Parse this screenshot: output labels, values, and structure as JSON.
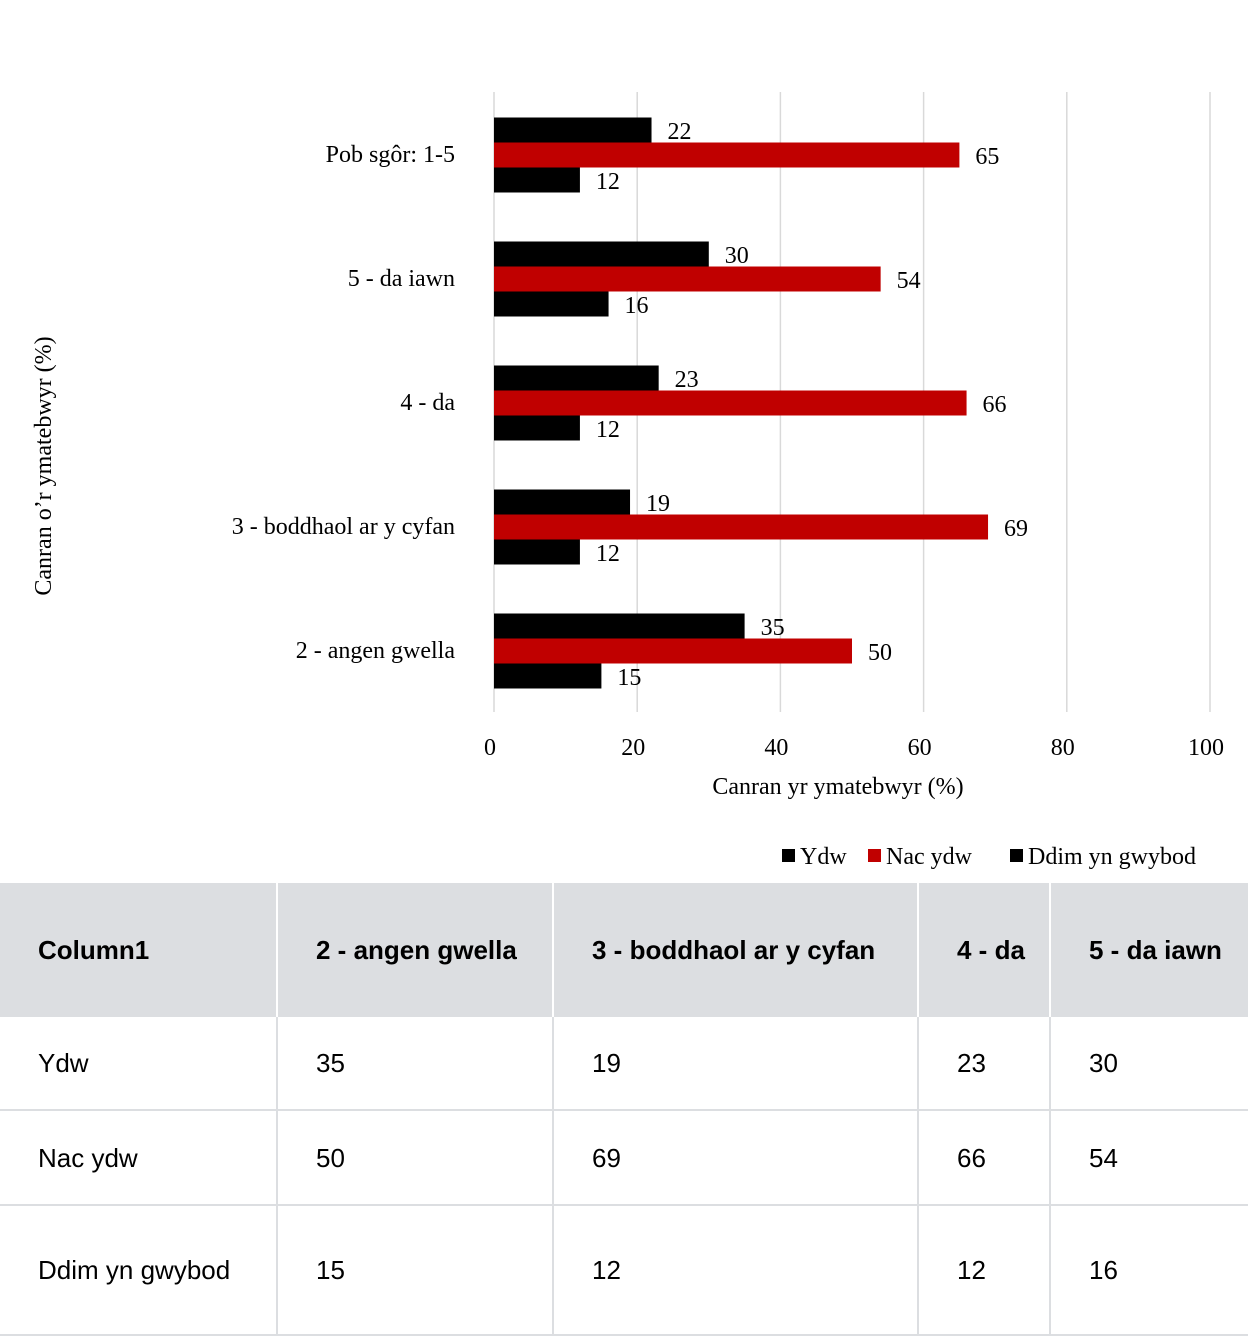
{
  "chart_data": {
    "type": "bar",
    "orientation": "horizontal",
    "categories": [
      "Pob sgôr: 1-5",
      "5 - da iawn",
      "4 - da",
      "3 - boddhaol ar y cyfan",
      "2 - angen gwella"
    ],
    "series": [
      {
        "name": "Ydw",
        "color": "#000000",
        "values": [
          22,
          30,
          23,
          19,
          35
        ]
      },
      {
        "name": "Nac ydw",
        "color": "#c00000",
        "values": [
          65,
          54,
          66,
          69,
          50
        ]
      },
      {
        "name": "Ddim yn gwybod",
        "color": "#000000",
        "values": [
          12,
          16,
          12,
          12,
          15
        ]
      }
    ],
    "xlabel": "Canran yr ymatebwyr (%)",
    "ylabel": "Canran o’r ymatebwyr (%)",
    "xlim": [
      0,
      100
    ],
    "xticks": [
      "0",
      "20",
      "40",
      "60",
      "80",
      "100"
    ],
    "grid": "vertical",
    "legend_position": "bottom-right",
    "data_labels": true
  },
  "table": {
    "headers": [
      "Column1",
      "2 - angen gwella",
      "3 - boddhaol ar y cyfan",
      "4 - da",
      "5 - da iawn"
    ],
    "rows": [
      [
        "Ydw",
        "35",
        "19",
        "23",
        "30"
      ],
      [
        "Nac ydw",
        "50",
        "69",
        "66",
        "54"
      ],
      [
        "Ddim yn gwybod",
        "15",
        "12",
        "12",
        "16"
      ]
    ]
  }
}
